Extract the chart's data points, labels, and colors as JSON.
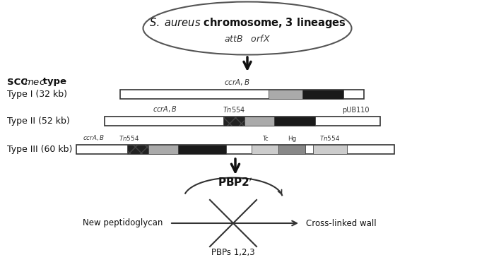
{
  "title_text": "$\\it{S. aureus}$ chromosome, 3 lineages",
  "attB_orfX": "$\\it{attB}$   $\\it{orfX}$",
  "type1_label": "Type I (32 kb)",
  "type2_label": "Type II (52 kb)",
  "type3_label": "Type III (60 kb)",
  "pbp2_label": "PBP2’",
  "new_peptido": "New peptidoglycan",
  "cross_linked": "Cross-linked wall",
  "pbps_label": "PBPs 1,2,3",
  "bg_color": "#ffffff"
}
